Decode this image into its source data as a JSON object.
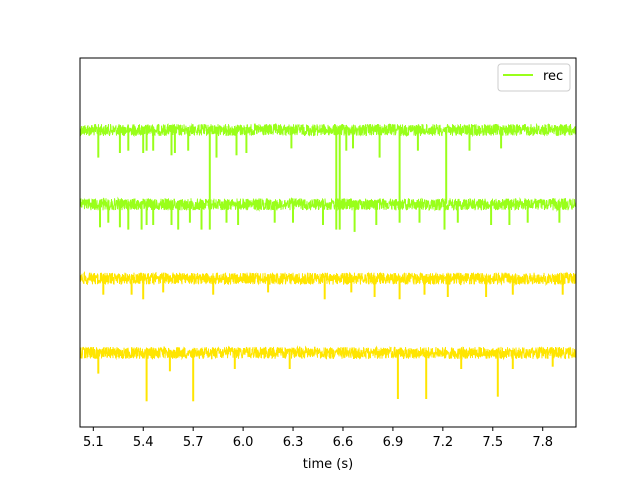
{
  "chart_data": {
    "type": "line",
    "title": "",
    "xlabel": "time (s)",
    "ylabel": "",
    "xlim": [
      5.02,
      8.0
    ],
    "xticks": [
      5.1,
      5.4,
      5.7,
      6.0,
      6.3,
      6.6,
      6.9,
      7.2,
      7.5,
      7.8
    ],
    "xtick_labels": [
      "5.1",
      "5.4",
      "5.7",
      "6.0",
      "6.3",
      "6.6",
      "6.9",
      "7.2",
      "7.5",
      "7.8"
    ],
    "yticks_visible": false,
    "grid": false,
    "legend": {
      "placement": "top-right",
      "entries": [
        {
          "label": "rec",
          "color": "#99ff1a"
        }
      ]
    },
    "series": [
      {
        "name": "rec",
        "color": "#99ff1a",
        "baseline": 0,
        "spikes": [
          {
            "t": 5.13,
            "depth": 0.6
          },
          {
            "t": 5.26,
            "depth": 0.5
          },
          {
            "t": 5.31,
            "depth": 0.45
          },
          {
            "t": 5.4,
            "depth": 0.5
          },
          {
            "t": 5.42,
            "depth": 0.45
          },
          {
            "t": 5.46,
            "depth": 0.45
          },
          {
            "t": 5.57,
            "depth": 0.55
          },
          {
            "t": 5.59,
            "depth": 0.5
          },
          {
            "t": 5.67,
            "depth": 0.45
          },
          {
            "t": 5.8,
            "depth": 1.55
          },
          {
            "t": 5.84,
            "depth": 0.6
          },
          {
            "t": 5.96,
            "depth": 0.55
          },
          {
            "t": 6.02,
            "depth": 0.5
          },
          {
            "t": 6.29,
            "depth": 0.4
          },
          {
            "t": 6.56,
            "depth": 1.55
          },
          {
            "t": 6.58,
            "depth": 1.55
          },
          {
            "t": 6.62,
            "depth": 0.45
          },
          {
            "t": 6.66,
            "depth": 0.4
          },
          {
            "t": 6.82,
            "depth": 0.6
          },
          {
            "t": 6.94,
            "depth": 1.55
          },
          {
            "t": 7.05,
            "depth": 0.45
          },
          {
            "t": 7.22,
            "depth": 1.6
          },
          {
            "t": 7.36,
            "depth": 0.45
          },
          {
            "t": 7.55,
            "depth": 0.4
          }
        ]
      },
      {
        "name": "",
        "color": "#99ff1a",
        "baseline": -1,
        "spikes": [
          {
            "t": 5.14,
            "depth": 0.5
          },
          {
            "t": 5.19,
            "depth": 0.4
          },
          {
            "t": 5.26,
            "depth": 0.5
          },
          {
            "t": 5.31,
            "depth": 0.55
          },
          {
            "t": 5.39,
            "depth": 0.55
          },
          {
            "t": 5.42,
            "depth": 0.45
          },
          {
            "t": 5.46,
            "depth": 0.45
          },
          {
            "t": 5.57,
            "depth": 0.45
          },
          {
            "t": 5.61,
            "depth": 0.55
          },
          {
            "t": 5.68,
            "depth": 0.4
          },
          {
            "t": 5.75,
            "depth": 0.55
          },
          {
            "t": 5.8,
            "depth": 0.55
          },
          {
            "t": 5.9,
            "depth": 0.4
          },
          {
            "t": 5.97,
            "depth": 0.45
          },
          {
            "t": 6.19,
            "depth": 0.4
          },
          {
            "t": 6.3,
            "depth": 0.4
          },
          {
            "t": 6.48,
            "depth": 0.45
          },
          {
            "t": 6.56,
            "depth": 0.55
          },
          {
            "t": 6.58,
            "depth": 0.55
          },
          {
            "t": 6.67,
            "depth": 0.6
          },
          {
            "t": 6.8,
            "depth": 0.45
          },
          {
            "t": 6.94,
            "depth": 0.4
          },
          {
            "t": 7.06,
            "depth": 0.4
          },
          {
            "t": 7.21,
            "depth": 0.55
          },
          {
            "t": 7.29,
            "depth": 0.4
          },
          {
            "t": 7.49,
            "depth": 0.45
          },
          {
            "t": 7.6,
            "depth": 0.45
          },
          {
            "t": 7.71,
            "depth": 0.4
          },
          {
            "t": 7.9,
            "depth": 0.4
          }
        ]
      },
      {
        "name": "",
        "color": "#ffe500",
        "baseline": -2,
        "spikes": [
          {
            "t": 5.16,
            "depth": 0.35
          },
          {
            "t": 5.33,
            "depth": 0.35
          },
          {
            "t": 5.4,
            "depth": 0.45
          },
          {
            "t": 5.52,
            "depth": 0.3
          },
          {
            "t": 5.82,
            "depth": 0.35
          },
          {
            "t": 6.15,
            "depth": 0.3
          },
          {
            "t": 6.49,
            "depth": 0.45
          },
          {
            "t": 6.65,
            "depth": 0.3
          },
          {
            "t": 6.79,
            "depth": 0.4
          },
          {
            "t": 6.94,
            "depth": 0.45
          },
          {
            "t": 7.09,
            "depth": 0.35
          },
          {
            "t": 7.23,
            "depth": 0.4
          },
          {
            "t": 7.46,
            "depth": 0.4
          },
          {
            "t": 7.62,
            "depth": 0.35
          },
          {
            "t": 7.92,
            "depth": 0.35
          }
        ]
      },
      {
        "name": "",
        "color": "#ffe500",
        "baseline": -3,
        "spikes": [
          {
            "t": 5.13,
            "depth": 0.45
          },
          {
            "t": 5.42,
            "depth": 1.05
          },
          {
            "t": 5.56,
            "depth": 0.4
          },
          {
            "t": 5.7,
            "depth": 1.05
          },
          {
            "t": 5.95,
            "depth": 0.35
          },
          {
            "t": 6.28,
            "depth": 0.35
          },
          {
            "t": 6.93,
            "depth": 1.0
          },
          {
            "t": 7.1,
            "depth": 1.0
          },
          {
            "t": 7.31,
            "depth": 0.35
          },
          {
            "t": 7.53,
            "depth": 0.95
          },
          {
            "t": 7.62,
            "depth": 0.35
          },
          {
            "t": 7.86,
            "depth": 0.3
          }
        ]
      }
    ]
  }
}
